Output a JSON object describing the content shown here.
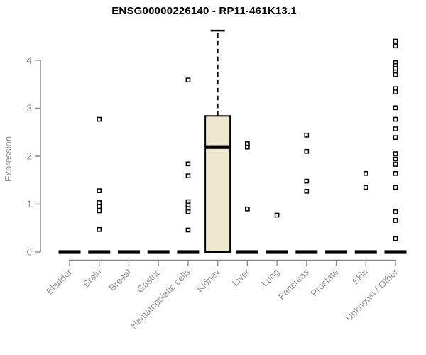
{
  "figure": {
    "title": "ENSG00000226140 - RP11-461K13.1",
    "ylabel": "Expression"
  },
  "colors": {
    "title": "#000000",
    "axis_line": "#878787",
    "tick_label": "#929292",
    "box_fill": "#EDE7CD",
    "box_border": "#000000",
    "median": "#000000",
    "zero_bar": "#000000",
    "outlier_stroke": "#000000",
    "outlier_fill": "#FFFFFF"
  },
  "chart_data": {
    "type": "boxplot",
    "title": "ENSG00000226140 - RP11-461K13.1",
    "xlabel": "",
    "ylabel": "Expression",
    "ylim": [
      0,
      4.65
    ],
    "yticks": [
      0,
      1,
      2,
      3,
      4
    ],
    "grid": false,
    "legend": "none",
    "categories": [
      "Bladder",
      "Brain",
      "Breast",
      "Gastric",
      "Hematopoietic cells",
      "Kidney",
      "Liver",
      "Lung",
      "Pancreas",
      "Prostate",
      "Skin",
      "Unknown / Other"
    ],
    "boxes": [
      {
        "category": "Bladder",
        "q1": 0,
        "median": 0,
        "q3": 0,
        "whisker_low": 0,
        "whisker_high": 0,
        "outliers": []
      },
      {
        "category": "Brain",
        "q1": 0,
        "median": 0,
        "q3": 0,
        "whisker_low": 0,
        "whisker_high": 0,
        "outliers": [
          2.77,
          1.28,
          1.03,
          0.95,
          0.86,
          0.47
        ]
      },
      {
        "category": "Breast",
        "q1": 0,
        "median": 0,
        "q3": 0,
        "whisker_low": 0,
        "whisker_high": 0,
        "outliers": []
      },
      {
        "category": "Gastric",
        "q1": 0,
        "median": 0,
        "q3": 0,
        "whisker_low": 0,
        "whisker_high": 0,
        "outliers": []
      },
      {
        "category": "Hematopoietic cells",
        "q1": 0,
        "median": 0,
        "q3": 0,
        "whisker_low": 0,
        "whisker_high": 0,
        "outliers": [
          3.59,
          1.84,
          1.59,
          1.05,
          0.98,
          0.91,
          0.84,
          0.46
        ]
      },
      {
        "category": "Kidney",
        "q1": 0,
        "median": 2.19,
        "q3": 2.84,
        "whisker_low": 0,
        "whisker_high": 4.62,
        "outliers": []
      },
      {
        "category": "Liver",
        "q1": 0,
        "median": 0,
        "q3": 0,
        "whisker_low": 0,
        "whisker_high": 0,
        "outliers": [
          2.26,
          2.19,
          0.9
        ]
      },
      {
        "category": "Lung",
        "q1": 0,
        "median": 0,
        "q3": 0,
        "whisker_low": 0,
        "whisker_high": 0,
        "outliers": [
          0.77
        ]
      },
      {
        "category": "Pancreas",
        "q1": 0,
        "median": 0,
        "q3": 0,
        "whisker_low": 0,
        "whisker_high": 0,
        "outliers": [
          2.44,
          2.1,
          1.48,
          1.27
        ]
      },
      {
        "category": "Prostate",
        "q1": 0,
        "median": 0,
        "q3": 0,
        "whisker_low": 0,
        "whisker_high": 0,
        "outliers": []
      },
      {
        "category": "Skin",
        "q1": 0,
        "median": 0,
        "q3": 0,
        "whisker_low": 0,
        "whisker_high": 0,
        "outliers": [
          1.64,
          1.35
        ]
      },
      {
        "category": "Unknown / Other",
        "q1": 0,
        "median": 0,
        "q3": 0,
        "whisker_low": 0,
        "whisker_high": 0,
        "outliers": [
          4.4,
          4.3,
          3.95,
          3.89,
          3.83,
          3.76,
          3.7,
          3.41,
          3.34,
          3.01,
          2.77,
          2.57,
          2.39,
          2.05,
          1.94,
          1.83,
          1.64,
          1.35,
          0.84,
          0.66,
          0.28
        ]
      }
    ]
  }
}
